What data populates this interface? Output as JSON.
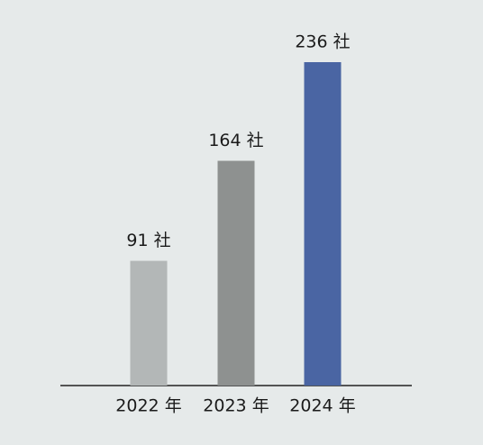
{
  "chart_data": {
    "type": "bar",
    "categories": [
      "2022 年",
      "2023 年",
      "2024 年"
    ],
    "values": [
      91,
      164,
      236
    ],
    "value_labels": [
      "91 社",
      "164 社",
      "236 社"
    ],
    "colors": [
      "#b3b7b7",
      "#8e9190",
      "#4a65a3"
    ]
  }
}
